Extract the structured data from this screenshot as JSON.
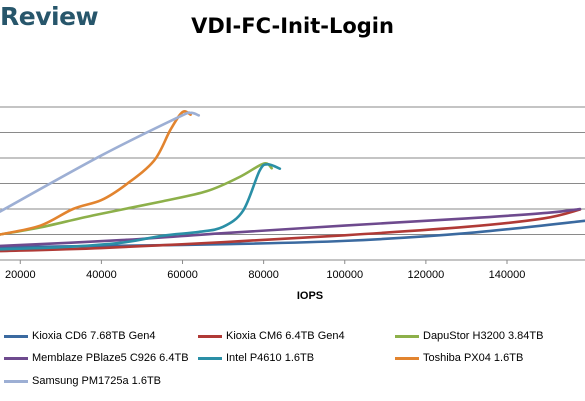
{
  "brand": "Review",
  "chart_data": {
    "type": "line",
    "title": "VDI-FC-Init-Login",
    "xlabel": "IOPS",
    "ylabel": "",
    "xlim": [
      15000,
      160000
    ],
    "ylim": [
      0,
      8
    ],
    "x_ticks": [
      20000,
      40000,
      60000,
      80000,
      100000,
      120000,
      140000
    ],
    "grid": "horizontal",
    "legend_position": "bottom",
    "series": [
      {
        "name": "Kioxia CD6 7.68TB Gen4",
        "color": "#3b6aa0",
        "points": [
          [
            15000,
            0.5
          ],
          [
            40000,
            0.55
          ],
          [
            70000,
            0.62
          ],
          [
            100000,
            0.75
          ],
          [
            130000,
            1.05
          ],
          [
            160000,
            1.55
          ]
        ]
      },
      {
        "name": "Kioxia CM6 6.4TB Gen4",
        "color": "#b03a36",
        "points": [
          [
            15000,
            0.35
          ],
          [
            40000,
            0.47
          ],
          [
            70000,
            0.7
          ],
          [
            100000,
            0.97
          ],
          [
            130000,
            1.3
          ],
          [
            149000,
            1.63
          ],
          [
            158000,
            1.98
          ]
        ]
      },
      {
        "name": "DapuStor H3200 3.84TB",
        "color": "#8db04a",
        "points": [
          [
            15000,
            1.0
          ],
          [
            25000,
            1.28
          ],
          [
            38000,
            1.75
          ],
          [
            55000,
            2.3
          ],
          [
            66000,
            2.7
          ],
          [
            74000,
            3.25
          ],
          [
            80000,
            3.78
          ],
          [
            82000,
            3.6
          ]
        ]
      },
      {
        "name": "Memblaze PBlaze5 C926 6.4TB",
        "color": "#6e4a8e",
        "points": [
          [
            15000,
            0.55
          ],
          [
            45000,
            0.78
          ],
          [
            70000,
            1.05
          ],
          [
            100000,
            1.35
          ],
          [
            130000,
            1.63
          ],
          [
            150000,
            1.85
          ],
          [
            158000,
            2.0
          ]
        ]
      },
      {
        "name": "Intel P4610 1.6TB",
        "color": "#2a8fa6",
        "points": [
          [
            15000,
            0.42
          ],
          [
            30000,
            0.5
          ],
          [
            45000,
            0.68
          ],
          [
            55000,
            0.95
          ],
          [
            64000,
            1.1
          ],
          [
            70000,
            1.3
          ],
          [
            75000,
            1.95
          ],
          [
            79000,
            3.5
          ],
          [
            81000,
            3.75
          ],
          [
            84000,
            3.58
          ]
        ]
      },
      {
        "name": "Toshiba PX04 1.6TB",
        "color": "#e2842f",
        "points": [
          [
            15000,
            1.0
          ],
          [
            25000,
            1.35
          ],
          [
            33000,
            2.0
          ],
          [
            40000,
            2.35
          ],
          [
            46000,
            2.95
          ],
          [
            53000,
            3.9
          ],
          [
            57000,
            5.1
          ],
          [
            60000,
            5.8
          ],
          [
            62000,
            5.7
          ]
        ]
      },
      {
        "name": "Samsung PM1725a 1.6TB",
        "color": "#9dafd4",
        "points": [
          [
            15000,
            1.9
          ],
          [
            40000,
            4.1
          ],
          [
            59000,
            5.6
          ],
          [
            62000,
            5.77
          ],
          [
            64000,
            5.67
          ]
        ]
      }
    ]
  }
}
